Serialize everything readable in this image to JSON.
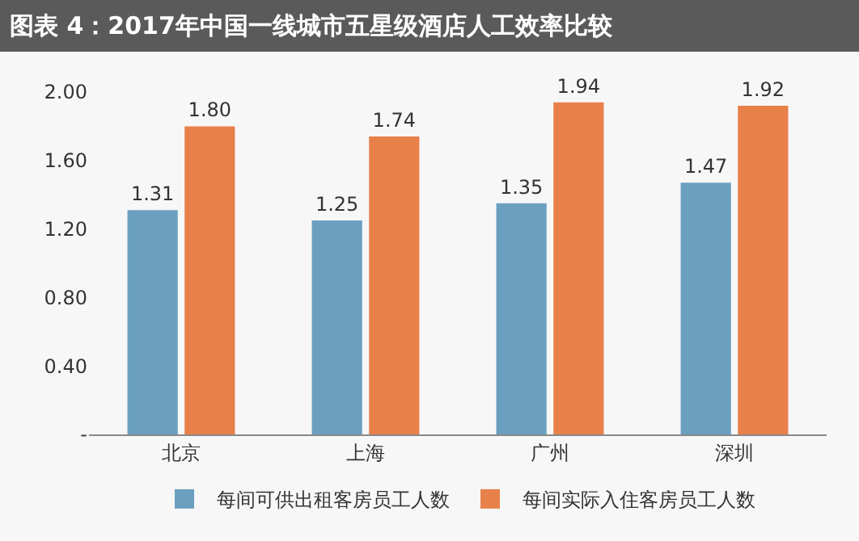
{
  "chart_data": {
    "type": "bar",
    "title": "图表 4：2017年中国一线城市五星级酒店人工效率比较",
    "categories": [
      "北京",
      "上海",
      "广州",
      "深圳"
    ],
    "series": [
      {
        "name": "每间可供出租客房员工人数",
        "color": "#6a9fc0",
        "values": [
          1.31,
          1.25,
          1.35,
          1.47
        ],
        "value_labels": [
          "1.31",
          "1.25",
          "1.35",
          "1.47"
        ]
      },
      {
        "name": "每间实际入住客房员工人数",
        "color": "#e8804a",
        "values": [
          1.8,
          1.74,
          1.94,
          1.92
        ],
        "value_labels": [
          "1.80",
          "1.74",
          "1.94",
          "1.92"
        ]
      }
    ],
    "ylim": [
      0,
      2.0
    ],
    "yticks": [
      {
        "value": 0,
        "label": "-"
      },
      {
        "value": 0.4,
        "label": "0.40"
      },
      {
        "value": 0.8,
        "label": "0.80"
      },
      {
        "value": 1.2,
        "label": "1.20"
      },
      {
        "value": 1.6,
        "label": "1.60"
      },
      {
        "value": 2.0,
        "label": "2.00"
      }
    ],
    "legend": "bottom",
    "grid": false
  }
}
